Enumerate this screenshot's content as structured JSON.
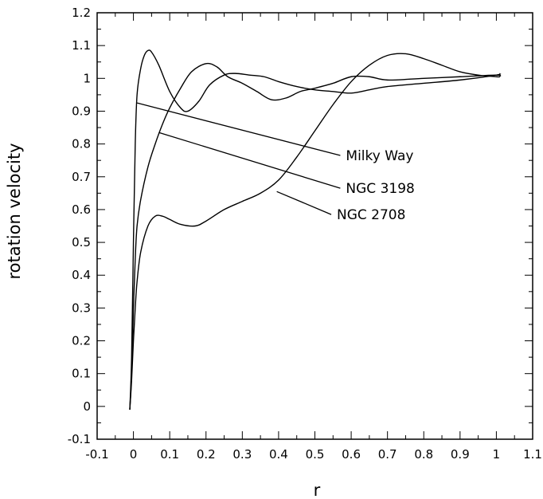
{
  "chart_data": {
    "type": "line",
    "title": "",
    "xlabel": "r",
    "ylabel": "rotation velocity",
    "xlim": [
      -0.1,
      1.1
    ],
    "ylim": [
      -0.1,
      1.2
    ],
    "x_ticks": [
      "-0.1",
      "0",
      "0.1",
      "0.2",
      "0.3",
      "0.4",
      "0.5",
      "0.6",
      "0.7",
      "0.8",
      "0.9",
      "1",
      "1.1"
    ],
    "y_ticks": [
      "-0.1",
      "0",
      "0.1",
      "0.2",
      "0.3",
      "0.4",
      "0.5",
      "0.6",
      "0.7",
      "0.8",
      "0.9",
      "1",
      "1.1",
      "1.2"
    ],
    "grid": false,
    "legend": "none",
    "series": [
      {
        "name": "Milky Way",
        "x": [
          -0.01,
          -0.005,
          0.0,
          0.005,
          0.01,
          0.02,
          0.03,
          0.04,
          0.05,
          0.07,
          0.1,
          0.13,
          0.15,
          0.18,
          0.21,
          0.25,
          0.28,
          0.32,
          0.36,
          0.4,
          0.45,
          0.5,
          0.55,
          0.6,
          0.65,
          0.7,
          0.8,
          0.9,
          1.0,
          1.01
        ],
        "y": [
          -0.01,
          0.15,
          0.5,
          0.8,
          0.95,
          1.03,
          1.07,
          1.085,
          1.08,
          1.04,
          0.96,
          0.91,
          0.9,
          0.93,
          0.98,
          1.01,
          1.015,
          1.01,
          1.005,
          0.99,
          0.975,
          0.965,
          0.96,
          0.955,
          0.965,
          0.975,
          0.985,
          0.995,
          1.01,
          1.015
        ]
      },
      {
        "name": "NGC 3198",
        "x": [
          -0.01,
          -0.005,
          0.0,
          0.005,
          0.01,
          0.02,
          0.04,
          0.06,
          0.08,
          0.1,
          0.13,
          0.16,
          0.2,
          0.23,
          0.26,
          0.3,
          0.34,
          0.38,
          0.42,
          0.46,
          0.5,
          0.55,
          0.6,
          0.65,
          0.7,
          0.8,
          0.9,
          1.0,
          1.01
        ],
        "y": [
          -0.01,
          0.1,
          0.3,
          0.45,
          0.55,
          0.63,
          0.73,
          0.8,
          0.86,
          0.91,
          0.97,
          1.02,
          1.045,
          1.035,
          1.005,
          0.985,
          0.96,
          0.935,
          0.94,
          0.96,
          0.97,
          0.985,
          1.005,
          1.005,
          0.995,
          1.0,
          1.005,
          1.01,
          1.005
        ]
      },
      {
        "name": "NGC 2708",
        "x": [
          -0.01,
          -0.005,
          0.0,
          0.005,
          0.01,
          0.02,
          0.04,
          0.06,
          0.08,
          0.1,
          0.13,
          0.17,
          0.2,
          0.25,
          0.3,
          0.35,
          0.4,
          0.45,
          0.5,
          0.55,
          0.6,
          0.65,
          0.7,
          0.75,
          0.8,
          0.85,
          0.9,
          0.95,
          1.0,
          1.01
        ],
        "y": [
          -0.01,
          0.08,
          0.2,
          0.3,
          0.38,
          0.47,
          0.55,
          0.58,
          0.58,
          0.57,
          0.555,
          0.55,
          0.565,
          0.6,
          0.625,
          0.65,
          0.69,
          0.76,
          0.84,
          0.92,
          0.99,
          1.04,
          1.07,
          1.075,
          1.06,
          1.04,
          1.02,
          1.01,
          1.005,
          1.005
        ]
      }
    ],
    "annotations": [
      {
        "text": "Milky Way",
        "from": [
          0.01,
          0.925
        ],
        "to": [
          0.57,
          0.765
        ]
      },
      {
        "text": "NGC 3198",
        "from": [
          0.07,
          0.835
        ],
        "to": [
          0.57,
          0.665
        ]
      },
      {
        "text": "NGC 2708",
        "from": [
          0.395,
          0.655
        ],
        "to": [
          0.545,
          0.585
        ]
      }
    ]
  }
}
